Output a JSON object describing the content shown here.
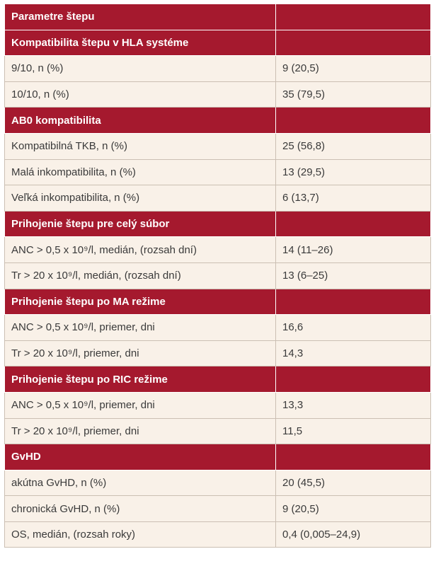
{
  "table": {
    "header": "Parametre štepu",
    "sections": [
      {
        "title": "Kompatibilita štepu v HLA systéme",
        "rows": [
          [
            "9/10, n (%)",
            "9 (20,5)"
          ],
          [
            "10/10, n (%)",
            "35 (79,5)"
          ]
        ]
      },
      {
        "title": "AB0 kompatibilita",
        "rows": [
          [
            "Kompatibilná TKB, n (%)",
            "25 (56,8)"
          ],
          [
            "Malá inkompatibilita, n (%)",
            "13 (29,5)"
          ],
          [
            "Veľká inkompatibilita, n (%)",
            "6 (13,7)"
          ]
        ]
      },
      {
        "title": "Prihojenie štepu pre celý súbor",
        "rows": [
          [
            "ANC > 0,5 x 10⁹/l, medián, (rozsah dní)",
            "14 (11–26)"
          ],
          [
            "Tr > 20 x 10⁹/l, medián, (rozsah dní)",
            "13 (6–25)"
          ]
        ]
      },
      {
        "title": "Prihojenie štepu po MA režime",
        "rows": [
          [
            "ANC > 0,5 x 10⁹/l, priemer, dni",
            "16,6"
          ],
          [
            "Tr > 20 x 10⁹/l, priemer, dni",
            "14,3"
          ]
        ]
      },
      {
        "title": "Prihojenie štepu po RIC režime",
        "rows": [
          [
            "ANC > 0,5 x 10⁹/l, priemer, dni",
            "13,3"
          ],
          [
            "Tr > 20 x 10⁹/l, priemer, dni",
            "11,5"
          ]
        ]
      },
      {
        "title": "GvHD",
        "rows": [
          [
            "akútna GvHD, n (%)",
            "20 (45,5)"
          ],
          [
            "chronická GvHD, n (%)",
            "9 (20,5)"
          ],
          [
            "OS, medián, (rozsah roky)",
            "0,4 (0,005–24,9)"
          ]
        ]
      }
    ]
  }
}
